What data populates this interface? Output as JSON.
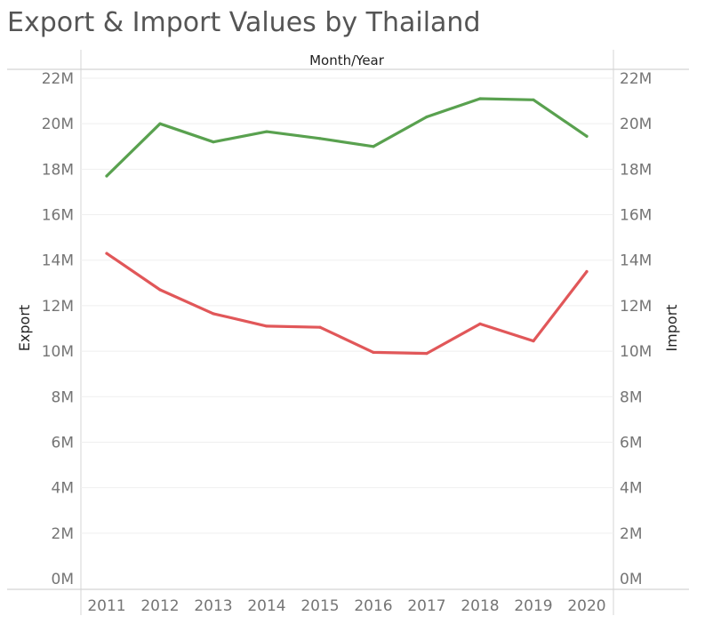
{
  "chart_data": {
    "type": "line",
    "title": "Export & Import Values by Thailand",
    "header_label": "Month/Year",
    "ylabel_left": "Export",
    "ylabel_right": "Import",
    "x": [
      "2011",
      "2012",
      "2013",
      "2014",
      "2015",
      "2016",
      "2017",
      "2018",
      "2019",
      "2020"
    ],
    "y_ticks": [
      "0M",
      "2M",
      "4M",
      "6M",
      "8M",
      "10M",
      "12M",
      "14M",
      "16M",
      "18M",
      "20M",
      "22M"
    ],
    "ylim": [
      0,
      22000000
    ],
    "series": [
      {
        "values": [
          17700000,
          20000000,
          19200000,
          19650000,
          19350000,
          19000000,
          20300000,
          21100000,
          21050000,
          19450000
        ],
        "color": "#59a14f"
      },
      {
        "values": [
          14300000,
          12700000,
          11650000,
          11100000,
          11050000,
          9950000,
          9900000,
          11200000,
          10450000,
          13500000
        ],
        "color": "#e15759"
      }
    ]
  }
}
